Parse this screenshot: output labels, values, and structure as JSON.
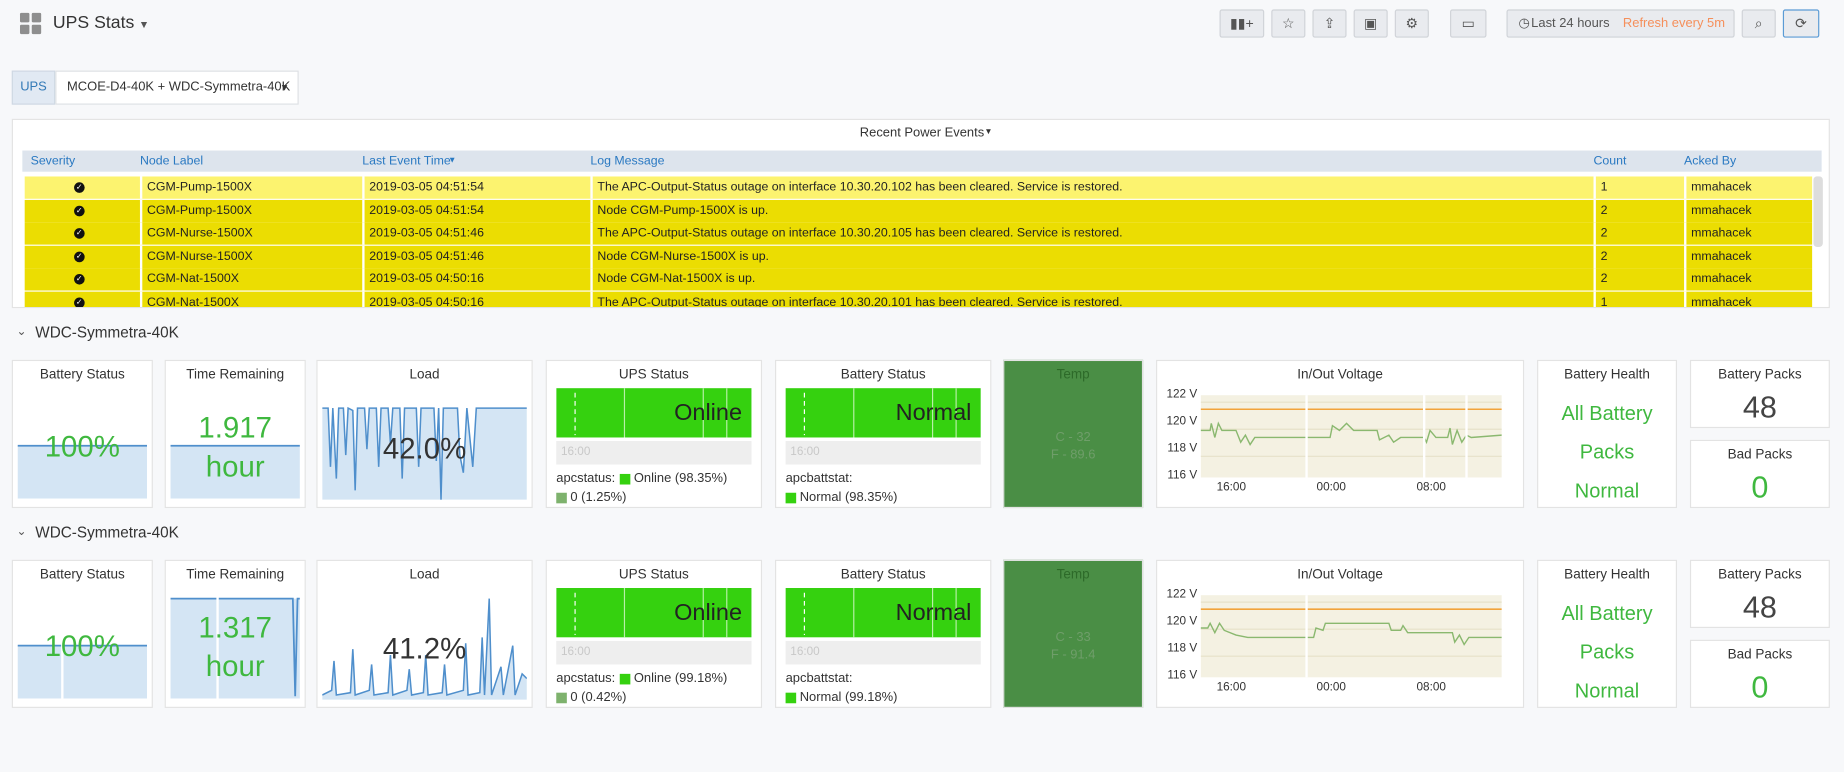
{
  "header": {
    "title": "UPS Stats",
    "time_range": "Last 24 hours",
    "refresh": "Refresh every 5m"
  },
  "variable": {
    "label": "UPS",
    "value": "MCOE-D4-40K + WDC-Symmetra-40K"
  },
  "events": {
    "title": "Recent Power Events",
    "columns": [
      "Severity",
      "Node Label",
      "Last Event Time",
      "Log Message",
      "Count",
      "Acked By"
    ],
    "rows": [
      [
        "CGM-Pump-1500X",
        "2019-03-05 04:51:54",
        "The APC-Output-Status outage on interface 10.30.20.102 has been cleared. Service is restored.",
        "1",
        "mmahacek"
      ],
      [
        "CGM-Pump-1500X",
        "2019-03-05 04:51:54",
        "Node CGM-Pump-1500X is up.",
        "2",
        "mmahacek"
      ],
      [
        "CGM-Nurse-1500X",
        "2019-03-05 04:51:46",
        "The APC-Output-Status outage on interface 10.30.20.105 has been cleared. Service is restored.",
        "2",
        "mmahacek"
      ],
      [
        "CGM-Nurse-1500X",
        "2019-03-05 04:51:46",
        "Node CGM-Nurse-1500X is up.",
        "2",
        "mmahacek"
      ],
      [
        "CGM-Nat-1500X",
        "2019-03-05 04:50:16",
        "Node CGM-Nat-1500X is up.",
        "2",
        "mmahacek"
      ],
      [
        "CGM-Nat-1500X",
        "2019-03-05 04:50:16",
        "The APC-Output-Status outage on interface 10.30.20.101 has been cleared. Service is restored.",
        "1",
        "mmahacek"
      ]
    ]
  },
  "rows": [
    {
      "title": "WDC-Symmetra-40K",
      "battery": {
        "title": "Battery Status",
        "value": "100%"
      },
      "remaining": {
        "title": "Time Remaining",
        "value": "1.917",
        "unit": "hour"
      },
      "load": {
        "title": "Load",
        "value": "42.0%"
      },
      "ups": {
        "title": "UPS Status",
        "state": "Online",
        "axis": "16:00",
        "legend_title": "apcstatus:",
        "legend": [
          "Online (98.35%)",
          "0 (1.25%)"
        ]
      },
      "batt": {
        "title": "Battery Status",
        "state": "Normal",
        "axis": "16:00",
        "legend_title": "apcbattstat:",
        "legend": [
          "Normal (98.35%)"
        ]
      },
      "temp": {
        "title": "Temp",
        "lines": [
          "C - 32",
          "F - 89.6"
        ]
      },
      "voltage": {
        "title": "In/Out Voltage",
        "yticks": [
          "122 V",
          "120 V",
          "118 V",
          "116 V"
        ],
        "xticks": [
          "16:00",
          "00:00",
          "08:00"
        ]
      },
      "health": {
        "title": "Battery Health",
        "lines": [
          "All Battery",
          "Packs",
          "Normal"
        ]
      },
      "packs": {
        "title": "Battery Packs",
        "value": "48"
      },
      "bad": {
        "title": "Bad Packs",
        "value": "0"
      }
    },
    {
      "title": "WDC-Symmetra-40K",
      "battery": {
        "title": "Battery Status",
        "value": "100%"
      },
      "remaining": {
        "title": "Time Remaining",
        "value": "1.317",
        "unit": "hour"
      },
      "load": {
        "title": "Load",
        "value": "41.2%"
      },
      "ups": {
        "title": "UPS Status",
        "state": "Online",
        "axis": "16:00",
        "legend_title": "apcstatus:",
        "legend": [
          "Online (99.18%)",
          "0 (0.42%)"
        ]
      },
      "batt": {
        "title": "Battery Status",
        "state": "Normal",
        "axis": "16:00",
        "legend_title": "apcbattstat:",
        "legend": [
          "Normal (99.18%)"
        ]
      },
      "temp": {
        "title": "Temp",
        "lines": [
          "C - 33",
          "F - 91.4"
        ]
      },
      "voltage": {
        "title": "In/Out Voltage",
        "yticks": [
          "122 V",
          "120 V",
          "118 V",
          "116 V"
        ],
        "xticks": [
          "16:00",
          "00:00",
          "08:00"
        ]
      },
      "health": {
        "title": "Battery Health",
        "lines": [
          "All Battery",
          "Packs",
          "Normal"
        ]
      },
      "packs": {
        "title": "Battery Packs",
        "value": "48"
      },
      "bad": {
        "title": "Bad Packs",
        "value": "0"
      }
    }
  ]
}
